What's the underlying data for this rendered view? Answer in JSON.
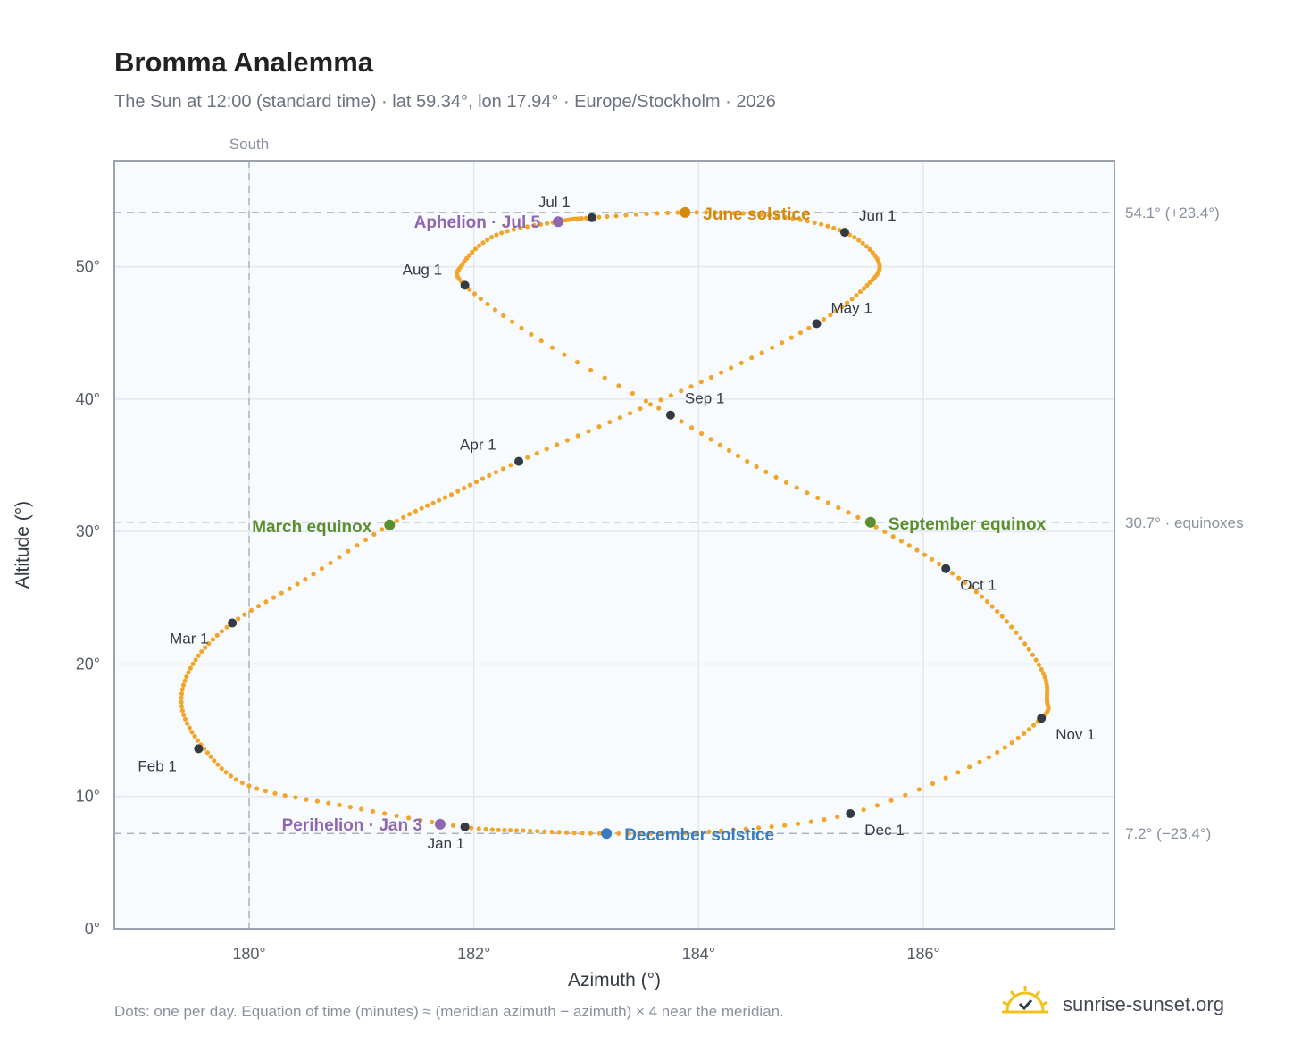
{
  "header": {
    "title": "Bromma Analemma",
    "subtitle": "The Sun at 12:00 (standard time) · lat 59.34°, lon 17.94° · Europe/Stockholm · 2026"
  },
  "footer": {
    "note": "Dots: one per day. Equation of time (minutes) ≈ (meridian azimuth − azimuth) × 4 near the meridian.",
    "brand": "sunrise-sunset.org"
  },
  "chart_data": {
    "type": "scatter",
    "xlabel": "Azimuth (°)",
    "ylabel": "Altitude (°)",
    "xlim": [
      178.8,
      187.7
    ],
    "ylim": [
      0,
      58
    ],
    "xticks": [
      180,
      182,
      184,
      186
    ],
    "xtick_labels": [
      "180°",
      "182°",
      "184°",
      "186°"
    ],
    "yticks": [
      0,
      10,
      20,
      30,
      40,
      50
    ],
    "ytick_labels": [
      "0°",
      "10°",
      "20°",
      "30°",
      "40°",
      "50°"
    ],
    "grid": true,
    "meridian": {
      "x": 180,
      "label": "South"
    },
    "reference_lines": [
      {
        "y": 54.1,
        "label": "54.1° (+23.4°)"
      },
      {
        "y": 30.7,
        "label": "30.7° · equinoxes"
      },
      {
        "y": 7.2,
        "label": "7.2° (−23.4°)"
      }
    ],
    "daily_path": {
      "color": "#f2a52b",
      "points": [
        [
          181.9,
          7.7
        ],
        [
          180.9,
          9.2
        ],
        [
          180.0,
          10.8
        ],
        [
          179.6,
          13.6
        ],
        [
          179.4,
          16.8
        ],
        [
          179.5,
          20.0
        ],
        [
          179.85,
          23.1
        ],
        [
          180.5,
          26.4
        ],
        [
          181.25,
          30.5
        ],
        [
          181.8,
          32.8
        ],
        [
          182.4,
          35.3
        ],
        [
          183.3,
          38.6
        ],
        [
          184.2,
          42.0
        ],
        [
          185.05,
          45.7
        ],
        [
          185.5,
          48.6
        ],
        [
          185.6,
          50.4
        ],
        [
          185.3,
          52.6
        ],
        [
          184.7,
          53.8
        ],
        [
          183.9,
          54.1
        ],
        [
          183.05,
          53.7
        ],
        [
          182.75,
          53.4
        ],
        [
          182.2,
          52.4
        ],
        [
          181.9,
          50.2
        ],
        [
          181.92,
          48.6
        ],
        [
          182.6,
          44.4
        ],
        [
          183.75,
          38.8
        ],
        [
          184.6,
          34.5
        ],
        [
          185.5,
          30.7
        ],
        [
          186.2,
          27.2
        ],
        [
          186.7,
          23.6
        ],
        [
          187.05,
          19.6
        ],
        [
          187.1,
          17.3
        ],
        [
          187.05,
          15.9
        ],
        [
          186.5,
          12.6
        ],
        [
          185.35,
          8.7
        ],
        [
          184.2,
          7.4
        ],
        [
          183.2,
          7.2
        ],
        [
          182.5,
          7.4
        ],
        [
          181.9,
          7.7
        ]
      ]
    },
    "month_markers": [
      {
        "label": "Jan 1",
        "x": 181.92,
        "y": 7.7
      },
      {
        "label": "Feb 1",
        "x": 179.55,
        "y": 13.6
      },
      {
        "label": "Mar 1",
        "x": 179.85,
        "y": 23.1
      },
      {
        "label": "Apr 1",
        "x": 182.4,
        "y": 35.3
      },
      {
        "label": "May 1",
        "x": 185.05,
        "y": 45.7
      },
      {
        "label": "Jun 1",
        "x": 185.3,
        "y": 52.6
      },
      {
        "label": "Jul 1",
        "x": 183.05,
        "y": 53.7
      },
      {
        "label": "Aug 1",
        "x": 181.92,
        "y": 48.6
      },
      {
        "label": "Sep 1",
        "x": 183.75,
        "y": 38.8
      },
      {
        "label": "Oct 1",
        "x": 186.2,
        "y": 27.2
      },
      {
        "label": "Nov 1",
        "x": 187.05,
        "y": 15.9
      },
      {
        "label": "Dec 1",
        "x": 185.35,
        "y": 8.7
      }
    ],
    "events": [
      {
        "label": "June solstice",
        "x": 183.88,
        "y": 54.1,
        "color": "#d4890b"
      },
      {
        "label": "December solstice",
        "x": 183.18,
        "y": 7.2,
        "color": "#3a7bc0"
      },
      {
        "label": "March equinox",
        "x": 181.25,
        "y": 30.5,
        "color": "#5a8f2e"
      },
      {
        "label": "September equinox",
        "x": 185.53,
        "y": 30.7,
        "color": "#5a8f2e"
      },
      {
        "label": "Aphelion · Jul 5",
        "x": 182.75,
        "y": 53.4,
        "color": "#8e67b0"
      },
      {
        "label": "Perihelion · Jan 3",
        "x": 181.7,
        "y": 7.9,
        "color": "#8e67b0"
      }
    ]
  }
}
